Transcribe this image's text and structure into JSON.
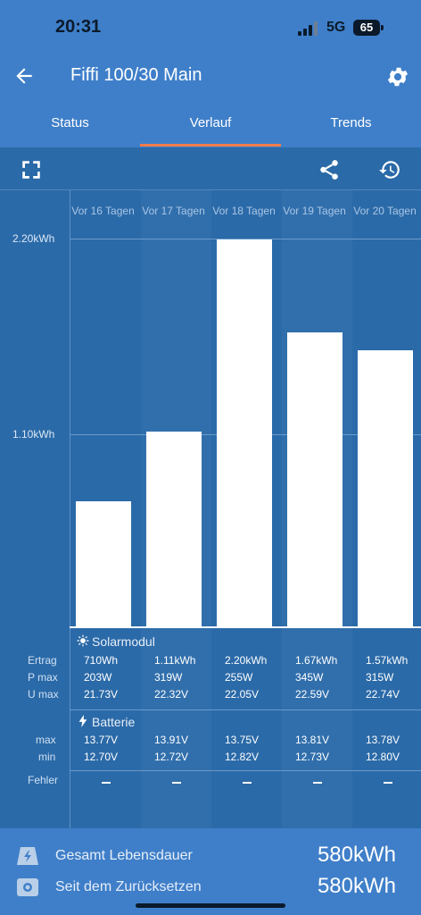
{
  "status_bar": {
    "time": "20:31",
    "network": "5G",
    "battery": "65"
  },
  "header": {
    "title": "Fiffi 100/30 Main"
  },
  "tabs": [
    {
      "label": "Status",
      "active": false
    },
    {
      "label": "Verlauf",
      "active": true
    },
    {
      "label": "Trends",
      "active": false
    }
  ],
  "chart_data": {
    "type": "bar",
    "categories": [
      "Vor 16 Tagen",
      "Vor 17 Tagen",
      "Vor 18 Tagen",
      "Vor 19 Tagen",
      "Vor 20 Tagen"
    ],
    "values": [
      0.71,
      1.11,
      2.2,
      1.67,
      1.57
    ],
    "unit": "kWh",
    "yticks": [
      "2.20kWh",
      "1.10kWh"
    ],
    "ylim": [
      0,
      2.2
    ]
  },
  "table": {
    "solar_section": "Solarmodul",
    "battery_section": "Batterie",
    "row_labels": {
      "ertrag": "Ertrag",
      "pmax": "P max",
      "umax": "U max",
      "max": "max",
      "min": "min",
      "fehler": "Fehler"
    },
    "columns": [
      {
        "ertrag": "710Wh",
        "pmax": "203W",
        "umax": "21.73V",
        "bmax": "13.77V",
        "bmin": "12.70V",
        "fehler": "–"
      },
      {
        "ertrag": "1.11kWh",
        "pmax": "319W",
        "umax": "22.32V",
        "bmax": "13.91V",
        "bmin": "12.72V",
        "fehler": "–"
      },
      {
        "ertrag": "2.20kWh",
        "pmax": "255W",
        "umax": "22.05V",
        "bmax": "13.75V",
        "bmin": "12.82V",
        "fehler": "–"
      },
      {
        "ertrag": "1.67kWh",
        "pmax": "345W",
        "umax": "22.59V",
        "bmax": "13.81V",
        "bmin": "12.73V",
        "fehler": "–"
      },
      {
        "ertrag": "1.57kWh",
        "pmax": "315W",
        "umax": "22.74V",
        "bmax": "13.78V",
        "bmin": "12.80V",
        "fehler": "–"
      }
    ]
  },
  "footer": {
    "lifetime_label": "Gesamt Lebensdauer",
    "lifetime_value": "580kWh",
    "since_reset_label": "Seit dem Zurücksetzen",
    "since_reset_value": "580kWh"
  },
  "colors": {
    "header": "#3f7fc9",
    "background": "#2b6aa8",
    "accent": "#f07b4a",
    "bar": "#ffffff"
  }
}
